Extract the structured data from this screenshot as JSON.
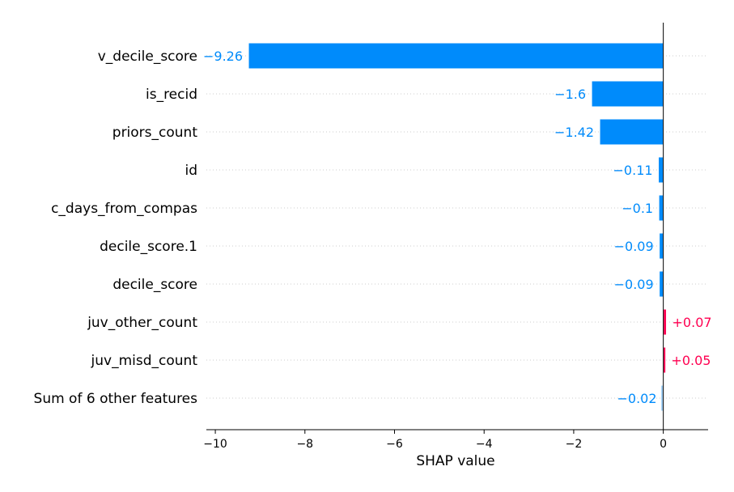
{
  "chart_data": {
    "type": "bar",
    "orientation": "horizontal",
    "xlabel": "SHAP value",
    "xlim": [
      -10.2,
      1.0
    ],
    "xticks": [
      -10,
      -8,
      -6,
      -4,
      -2,
      0
    ],
    "xtick_labels": [
      "−10",
      "−8",
      "−6",
      "−4",
      "−2",
      "0"
    ],
    "grid": "dotted horizontal row guides",
    "features": [
      {
        "name": "v_decile_score",
        "value": -9.26,
        "label": "−9.26"
      },
      {
        "name": "is_recid",
        "value": -1.6,
        "label": "−1.6"
      },
      {
        "name": "priors_count",
        "value": -1.42,
        "label": "−1.42"
      },
      {
        "name": "id",
        "value": -0.11,
        "label": "−0.11"
      },
      {
        "name": "c_days_from_compas",
        "value": -0.1,
        "label": "−0.1"
      },
      {
        "name": "decile_score.1",
        "value": -0.09,
        "label": "−0.09"
      },
      {
        "name": "decile_score",
        "value": -0.09,
        "label": "−0.09"
      },
      {
        "name": "juv_other_count",
        "value": 0.07,
        "label": "+0.07"
      },
      {
        "name": "juv_misd_count",
        "value": 0.05,
        "label": "+0.05"
      },
      {
        "name": "Sum of 6 other features",
        "value": -0.02,
        "label": "−0.02"
      }
    ],
    "colors": {
      "negative": "#008bfb",
      "positive": "#ff0051",
      "negative_faded": "#9ccdf5",
      "positive_faded": "#f7b6ca"
    }
  }
}
